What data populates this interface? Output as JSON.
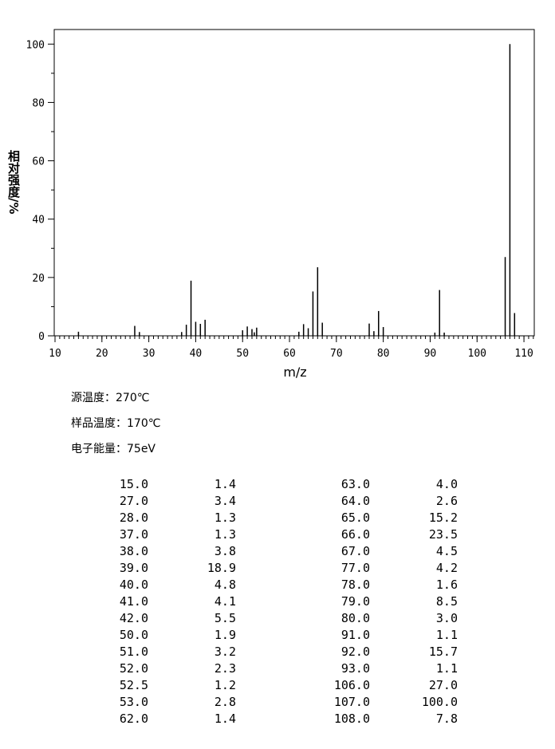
{
  "chart_data": {
    "type": "bar",
    "x_label": "m/z",
    "y_label": "相对强度/%",
    "x": [
      15,
      27,
      28,
      37,
      38,
      39,
      40,
      41,
      42,
      50,
      51,
      52,
      52.5,
      53,
      62,
      63,
      64,
      65,
      66,
      67,
      77,
      78,
      79,
      80,
      91,
      92,
      93,
      106,
      107,
      108
    ],
    "values": [
      1.4,
      3.4,
      1.3,
      1.3,
      3.8,
      18.9,
      4.8,
      4.1,
      5.5,
      1.9,
      3.2,
      2.3,
      1.2,
      2.8,
      1.4,
      4.0,
      2.6,
      15.2,
      23.5,
      4.5,
      4.2,
      1.6,
      8.5,
      3.0,
      1.1,
      15.7,
      1.1,
      27.0,
      100.0,
      7.8
    ],
    "color": "#000000",
    "xlim": [
      10,
      112.2
    ],
    "xticks": [
      10,
      20,
      30,
      40,
      50,
      60,
      70,
      80,
      90,
      100,
      110
    ],
    "ylim": [
      0,
      105
    ],
    "yticks": [
      0,
      20,
      40,
      60,
      80,
      100
    ]
  },
  "info": [
    "源温度：270℃",
    "样品温度：170℃",
    "电子能量：75eV"
  ],
  "table": {
    "rows": [
      [
        "15.0",
        "1.4",
        "63.0",
        "4.0"
      ],
      [
        "27.0",
        "3.4",
        "64.0",
        "2.6"
      ],
      [
        "28.0",
        "1.3",
        "65.0",
        "15.2"
      ],
      [
        "37.0",
        "1.3",
        "66.0",
        "23.5"
      ],
      [
        "38.0",
        "3.8",
        "67.0",
        "4.5"
      ],
      [
        "39.0",
        "18.9",
        "77.0",
        "4.2"
      ],
      [
        "40.0",
        "4.8",
        "78.0",
        "1.6"
      ],
      [
        "41.0",
        "4.1",
        "79.0",
        "8.5"
      ],
      [
        "42.0",
        "5.5",
        "80.0",
        "3.0"
      ],
      [
        "50.0",
        "1.9",
        "91.0",
        "1.1"
      ],
      [
        "51.0",
        "3.2",
        "92.0",
        "15.7"
      ],
      [
        "52.0",
        "2.3",
        "93.0",
        "1.1"
      ],
      [
        "52.5",
        "1.2",
        "106.0",
        "27.0"
      ],
      [
        "53.0",
        "2.8",
        "107.0",
        "100.0"
      ],
      [
        "62.0",
        "1.4",
        "108.0",
        "7.8"
      ]
    ]
  }
}
